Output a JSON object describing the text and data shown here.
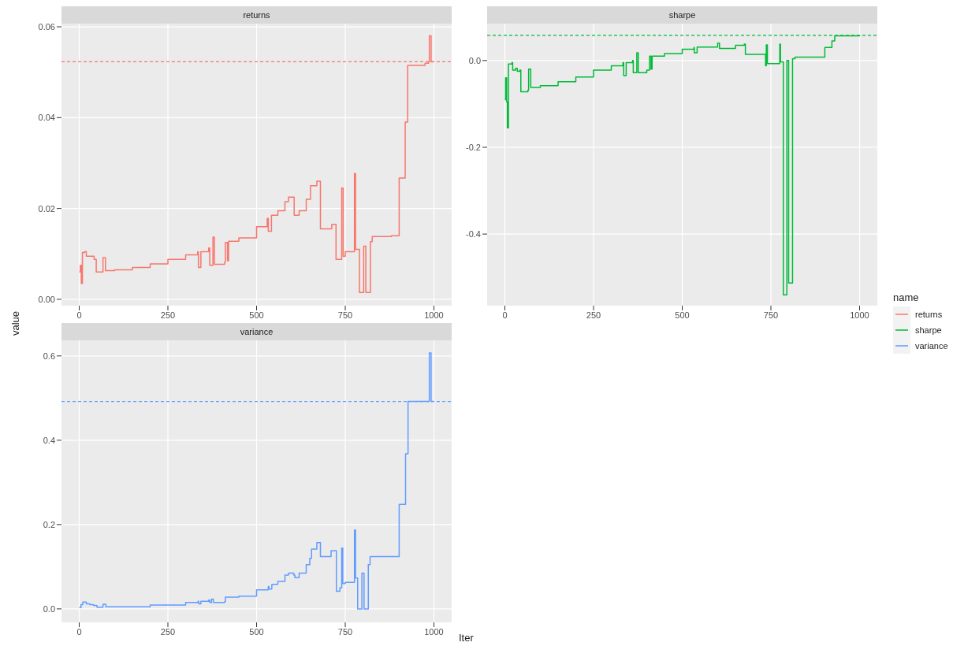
{
  "chart_data": [
    {
      "type": "step",
      "title": "returns",
      "ylabel": "value",
      "x": [
        0,
        3,
        6,
        9,
        15,
        20,
        35,
        42,
        48,
        67,
        74,
        100,
        150,
        200,
        250,
        300,
        334,
        336,
        343,
        365,
        368,
        377,
        381,
        410,
        412,
        418,
        421,
        450,
        500,
        530,
        533,
        542,
        560,
        580,
        590,
        606,
        620,
        640,
        652,
        670,
        680,
        712,
        724,
        740,
        744,
        750,
        776,
        779,
        790,
        802,
        808,
        821,
        826,
        880,
        902,
        919,
        926,
        975,
        985,
        987,
        992,
        1000
      ],
      "series": [
        {
          "name": "returns",
          "color": "#f8766d",
          "values": [
            0.006,
            0.0075,
            0.0035,
            0.0103,
            0.0105,
            0.0095,
            0.0095,
            0.0088,
            0.006,
            0.0092,
            0.0063,
            0.0065,
            0.007,
            0.0078,
            0.0088,
            0.0098,
            0.0105,
            0.007,
            0.0105,
            0.0113,
            0.0075,
            0.0137,
            0.0077,
            0.0082,
            0.0125,
            0.0085,
            0.0128,
            0.0135,
            0.016,
            0.0178,
            0.015,
            0.0185,
            0.0195,
            0.0215,
            0.0225,
            0.0185,
            0.0195,
            0.022,
            0.025,
            0.026,
            0.0155,
            0.0165,
            0.0088,
            0.0245,
            0.0095,
            0.0105,
            0.0277,
            0.011,
            0.0015,
            0.0117,
            0.0015,
            0.0127,
            0.0138,
            0.014,
            0.0267,
            0.039,
            0.0515,
            0.052,
            0.0523,
            0.058,
            0.0523,
            0.0523
          ]
        }
      ],
      "xlim": [
        -50,
        1050
      ],
      "xticks": [
        0,
        250,
        500,
        750,
        1000
      ],
      "ylim": [
        -0.0014,
        0.0607
      ],
      "yticks": [
        {
          "value": 0,
          "label": "0.00"
        },
        {
          "value": 0.02,
          "label": "0.02"
        },
        {
          "value": 0.04,
          "label": "0.04"
        },
        {
          "value": 0.06,
          "label": "0.06"
        }
      ],
      "ref_lines": [
        {
          "axis": "y",
          "value": 0.0523,
          "color": "#f8766d",
          "line_style": "dashed"
        }
      ],
      "grid": true
    },
    {
      "type": "step",
      "title": "sharpe",
      "legend_title": "name",
      "legend": "right",
      "x": [
        0,
        2,
        5,
        7,
        10,
        20,
        22,
        30,
        35,
        42,
        45,
        65,
        67,
        73,
        100,
        150,
        200,
        250,
        300,
        333,
        335,
        342,
        360,
        362,
        372,
        376,
        400,
        408,
        412,
        415,
        450,
        500,
        533,
        534,
        542,
        600,
        605,
        650,
        675,
        678,
        720,
        735,
        737,
        740,
        775,
        777,
        785,
        795,
        800,
        811,
        818,
        900,
        902,
        920,
        922,
        930,
        1000
      ],
      "series": [
        {
          "name": "sharpe",
          "color": "#00ba38",
          "values": [
            -0.09,
            -0.04,
            -0.095,
            -0.155,
            -0.008,
            -0.005,
            -0.022,
            -0.018,
            -0.025,
            -0.022,
            -0.072,
            -0.068,
            -0.02,
            -0.062,
            -0.058,
            -0.049,
            -0.038,
            -0.022,
            -0.012,
            -0.005,
            -0.035,
            -0.005,
            0.0,
            -0.028,
            0.018,
            -0.028,
            -0.022,
            0.01,
            -0.02,
            0.01,
            0.016,
            0.026,
            0.03,
            0.018,
            0.031,
            0.04,
            0.028,
            0.035,
            0.038,
            0.014,
            0.014,
            -0.012,
            0.036,
            -0.007,
            0.038,
            -0.003,
            -0.54,
            0.0,
            -0.513,
            0.004,
            0.008,
            0.008,
            0.03,
            0.03,
            0.045,
            0.057,
            0.058
          ]
        }
      ],
      "xlim": [
        -50,
        1050
      ],
      "xticks": [
        0,
        250,
        500,
        750,
        1000
      ],
      "ylim": [
        -0.565,
        0.085
      ],
      "yticks": [
        -0.4,
        -0.2,
        {
          "value": 0,
          "label": "0.0"
        }
      ],
      "ref_lines": [
        {
          "axis": "y",
          "value": 0.058,
          "color": "#00ba38",
          "line_style": "dashed"
        }
      ],
      "grid": true
    },
    {
      "type": "step",
      "title": "variance",
      "xlabel": "Iter",
      "x": [
        0,
        5,
        10,
        20,
        30,
        40,
        50,
        65,
        67,
        75,
        100,
        200,
        300,
        335,
        337,
        343,
        365,
        368,
        373,
        378,
        410,
        412,
        420,
        450,
        500,
        533,
        535,
        543,
        560,
        580,
        590,
        605,
        608,
        620,
        640,
        650,
        655,
        670,
        680,
        705,
        710,
        725,
        735,
        740,
        743,
        750,
        776,
        779,
        785,
        797,
        803,
        815,
        820,
        900,
        902,
        918,
        920,
        925,
        927,
        986,
        987,
        992,
        1000
      ],
      "series": [
        {
          "name": "variance",
          "color": "#619cff",
          "values": [
            0.003,
            0.01,
            0.016,
            0.012,
            0.01,
            0.008,
            0.004,
            0.004,
            0.011,
            0.005,
            0.005,
            0.009,
            0.015,
            0.018,
            0.012,
            0.018,
            0.021,
            0.015,
            0.023,
            0.015,
            0.017,
            0.028,
            0.028,
            0.03,
            0.045,
            0.053,
            0.047,
            0.058,
            0.065,
            0.08,
            0.085,
            0.08,
            0.074,
            0.085,
            0.105,
            0.12,
            0.142,
            0.157,
            0.124,
            0.124,
            0.138,
            0.042,
            0.05,
            0.144,
            0.06,
            0.063,
            0.187,
            0.073,
            0.0,
            0.085,
            0.0,
            0.105,
            0.124,
            0.124,
            0.248,
            0.248,
            0.368,
            0.368,
            0.492,
            0.492,
            0.607,
            0.492,
            0.492
          ]
        }
      ],
      "xlim": [
        -50,
        1050
      ],
      "xticks": [
        0,
        250,
        500,
        750,
        1000
      ],
      "ylim": [
        -0.032,
        0.637
      ],
      "yticks": [
        {
          "value": 0,
          "label": "0.0"
        },
        0.2,
        0.4,
        0.6
      ],
      "ref_lines": [
        {
          "axis": "y",
          "value": 0.492,
          "color": "#619cff",
          "line_style": "dashed"
        }
      ],
      "grid": true
    }
  ]
}
